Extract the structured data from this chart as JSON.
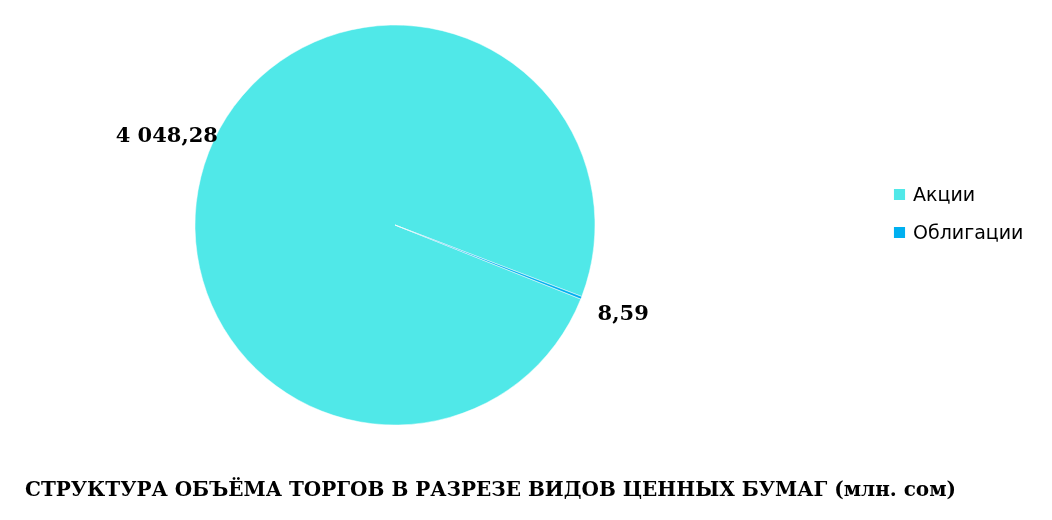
{
  "chart_data": {
    "type": "pie",
    "title": "СТРУКТУРА ОБЪЁМА ТОРГОВ В РАЗРЕЗЕ ВИДОВ ЦЕННЫХ БУМАГ  (млн. сом)",
    "categories": [
      "Акции",
      "Облигации"
    ],
    "values": [
      4048.28,
      8.59
    ],
    "colors": [
      "#50e8e8",
      "#00b0f0"
    ],
    "value_labels": [
      "4 048,28",
      "8,59"
    ],
    "legend": "right"
  }
}
